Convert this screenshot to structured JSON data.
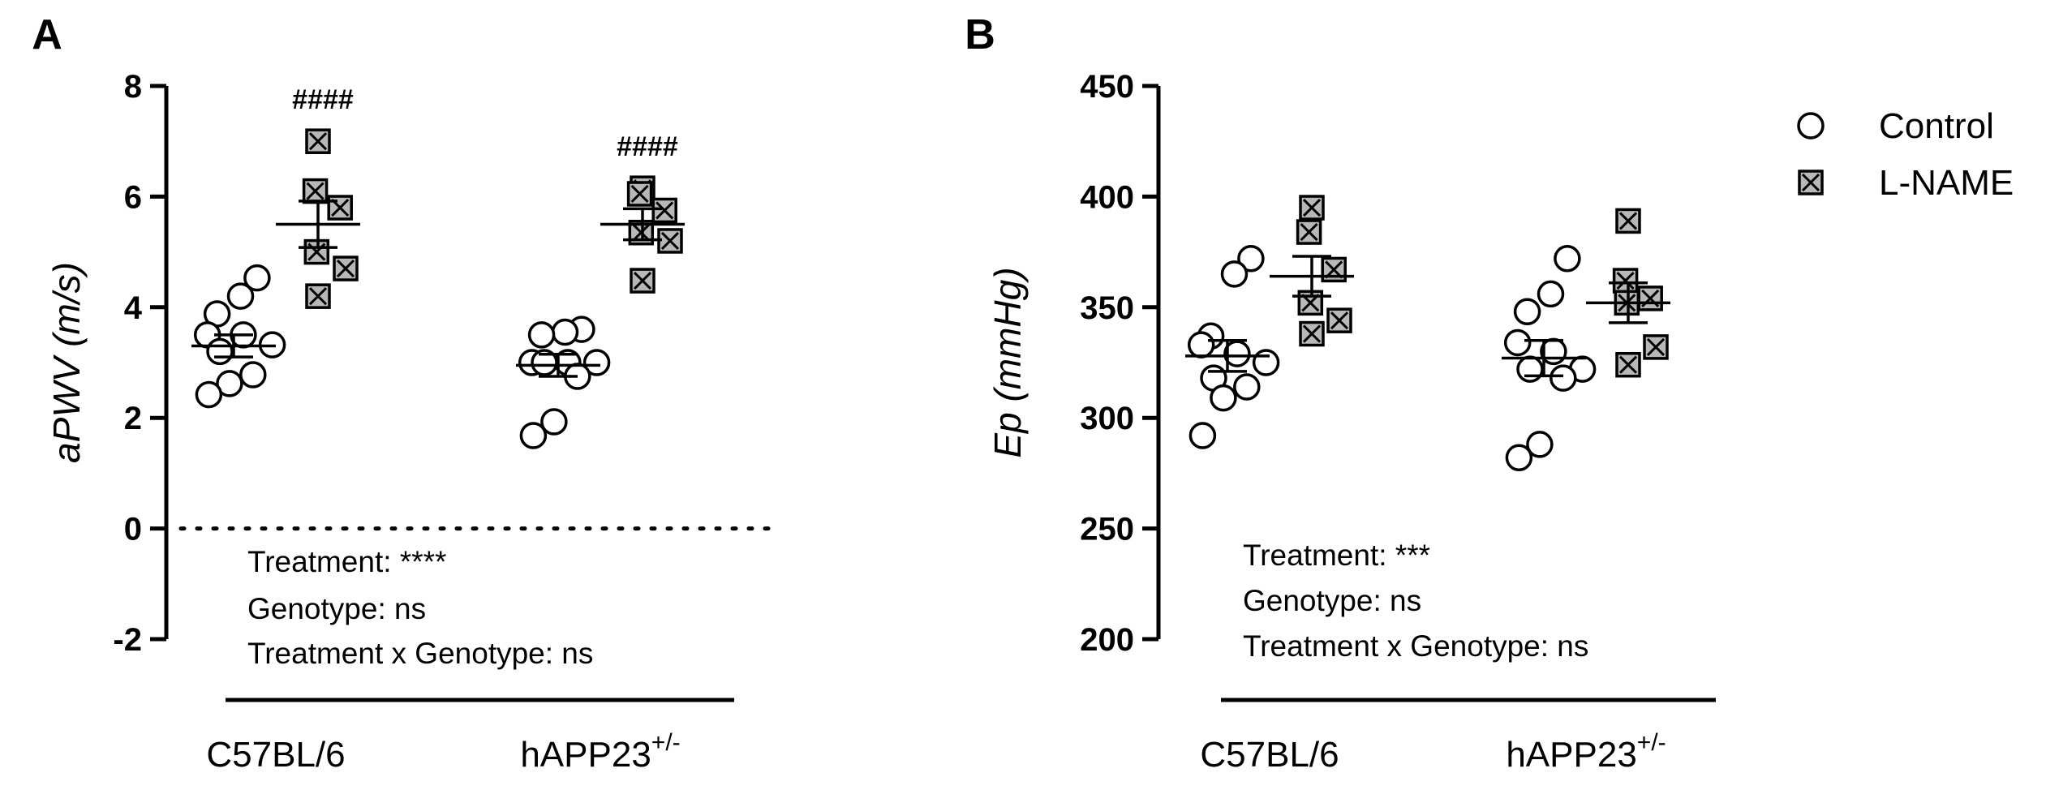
{
  "chart_data": [
    {
      "panel": "A",
      "type": "scatter",
      "ylabel": "aPWV (m/s)",
      "ylim": [
        -2,
        8
      ],
      "yticks": [
        "-2",
        "0",
        "2",
        "4",
        "6",
        "8"
      ],
      "zero_line": true,
      "categories": [
        {
          "name": "C57BL/6",
          "sup": ""
        },
        {
          "name": "hAPP23",
          "sup": "+/-"
        }
      ],
      "series": [
        {
          "name": "Control",
          "marker": "open-circle",
          "groups": [
            {
              "points": [
                4.53,
                4.2,
                3.88,
                3.5,
                3.5,
                3.32,
                3.2,
                2.78,
                2.62,
                2.42
              ],
              "mean": 3.3,
              "sem": 0.2,
              "sig": ""
            },
            {
              "points": [
                3.6,
                3.55,
                3.5,
                3.0,
                3.0,
                3.0,
                3.0,
                2.75,
                1.93,
                1.68
              ],
              "mean": 2.95,
              "sem": 0.2,
              "sig": ""
            }
          ]
        },
        {
          "name": "L-NAME",
          "marker": "x-square",
          "groups": [
            {
              "points": [
                7.0,
                6.1,
                5.8,
                5.0,
                4.7,
                4.2
              ],
              "mean": 5.5,
              "sem": 0.42,
              "sig": "####"
            },
            {
              "points": [
                6.15,
                6.05,
                5.75,
                5.35,
                5.2,
                4.48
              ],
              "mean": 5.5,
              "sem": 0.28,
              "sig": "####"
            }
          ]
        }
      ],
      "stats": [
        "Treatment: ****",
        "Genotype: ns",
        "Treatment x Genotype: ns"
      ]
    },
    {
      "panel": "B",
      "type": "scatter",
      "ylabel": "Ep (mmHg)",
      "ylim": [
        200,
        450
      ],
      "yticks": [
        "200",
        "250",
        "300",
        "350",
        "400",
        "450"
      ],
      "zero_line": false,
      "categories": [
        {
          "name": "C57BL/6",
          "sup": ""
        },
        {
          "name": "hAPP23",
          "sup": "+/-"
        }
      ],
      "series": [
        {
          "name": "Control",
          "marker": "open-circle",
          "groups": [
            {
              "points": [
                372,
                365,
                337,
                333,
                329,
                325,
                318,
                314,
                309,
                292
              ],
              "mean": 328,
              "sem": 7,
              "sig": ""
            },
            {
              "points": [
                372,
                356,
                348,
                334,
                330,
                322,
                322,
                318,
                288,
                282
              ],
              "mean": 327,
              "sem": 8,
              "sig": ""
            }
          ]
        },
        {
          "name": "L-NAME",
          "marker": "x-square",
          "groups": [
            {
              "points": [
                395,
                384,
                367,
                352,
                344,
                338
              ],
              "mean": 364,
              "sem": 9,
              "sig": ""
            },
            {
              "points": [
                389,
                362,
                354,
                352,
                332,
                324
              ],
              "mean": 352,
              "sem": 9,
              "sig": ""
            }
          ]
        }
      ],
      "stats": [
        "Treatment: ***",
        "Genotype: ns",
        "Treatment x Genotype: ns"
      ]
    }
  ],
  "legend": {
    "items": [
      {
        "label": "Control",
        "marker": "open-circle"
      },
      {
        "label": "L-NAME",
        "marker": "x-square"
      }
    ]
  },
  "colors": {
    "ink": "#000000",
    "marker_fill": "#b8b8b8",
    "circle_fill": "#ffffff"
  }
}
